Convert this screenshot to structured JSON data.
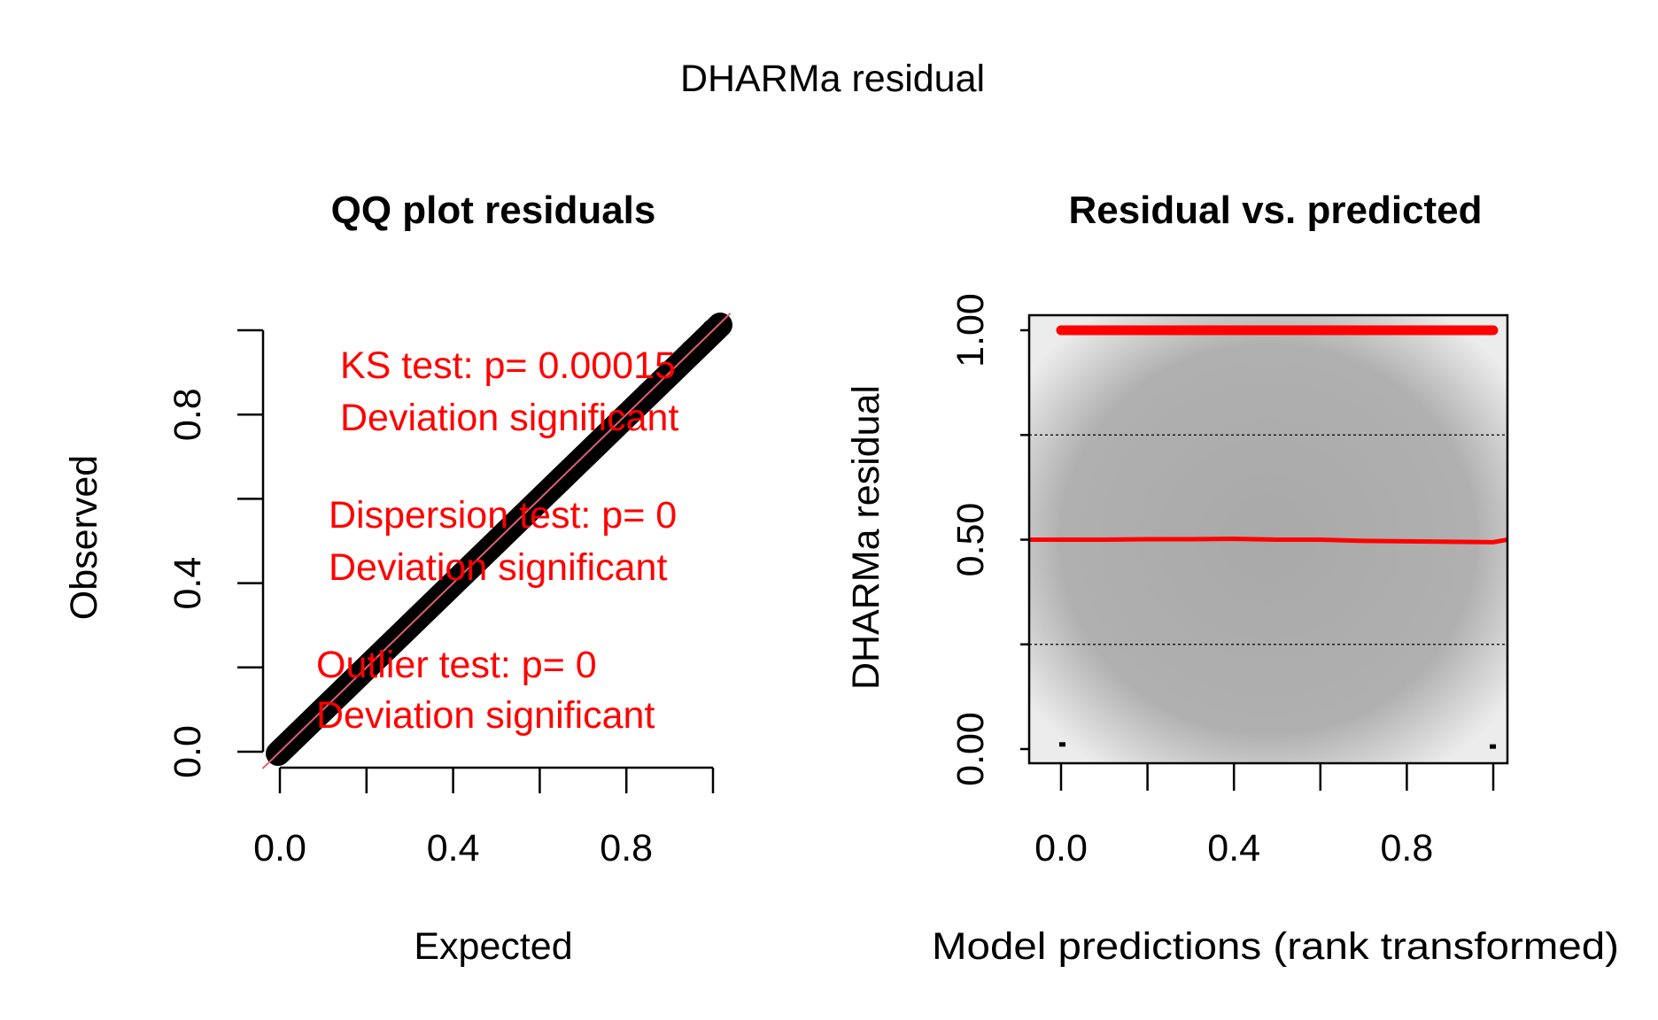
{
  "figure": {
    "title": "DHARMa residual"
  },
  "chart_data": [
    {
      "type": "scatter",
      "title": "QQ plot residuals",
      "xlabel": "Expected",
      "ylabel": "Observed",
      "xlim": [
        0,
        1
      ],
      "ylim": [
        0,
        1
      ],
      "xticks": [
        "0.0",
        "0.4",
        "0.8"
      ],
      "yticks": [
        "0.0",
        "0.4",
        "0.8"
      ],
      "x_tick_values": [
        0,
        0.2,
        0.4,
        0.6,
        0.8,
        1.0
      ],
      "y_tick_values": [
        0,
        0.2,
        0.4,
        0.6,
        0.8,
        1.0
      ],
      "series": [
        {
          "kind": "points",
          "color": "#000000",
          "x": [
            0.0,
            0.05,
            0.1,
            0.15,
            0.2,
            0.25,
            0.3,
            0.35,
            0.4,
            0.45,
            0.5,
            0.55,
            0.6,
            0.65,
            0.7,
            0.75,
            0.8,
            0.85,
            0.9,
            0.95,
            1.0
          ],
          "y": [
            0.0,
            0.05,
            0.1,
            0.15,
            0.2,
            0.25,
            0.3,
            0.35,
            0.4,
            0.45,
            0.5,
            0.55,
            0.6,
            0.65,
            0.7,
            0.75,
            0.8,
            0.85,
            0.9,
            0.95,
            1.0
          ]
        },
        {
          "kind": "reference-line",
          "color": "#e06070",
          "x": [
            -0.04,
            1.04
          ],
          "y": [
            -0.04,
            1.04
          ]
        }
      ],
      "annotations": [
        {
          "line1": "KS test: p= 0.00015",
          "line2": "Deviation  significant"
        },
        {
          "line1": "Dispersion test: p= 0",
          "line2": "Deviation  significant"
        },
        {
          "line1": "Outlier test: p= 0",
          "line2": "Deviation  significant"
        }
      ]
    },
    {
      "type": "scatter",
      "title": "Residual vs. predicted",
      "xlabel": "Model predictions (rank transformed)",
      "ylabel": "DHARMa residual",
      "xlim": [
        0,
        1
      ],
      "ylim": [
        0,
        1
      ],
      "xticks": [
        "0.0",
        "0.4",
        "0.8"
      ],
      "yticks": [
        "0.00",
        "0.50",
        "1.00"
      ],
      "x_tick_values": [
        0,
        0.2,
        0.4,
        0.6,
        0.8,
        1.0
      ],
      "y_tick_values": [
        0,
        0.25,
        0.5,
        0.75,
        1.0
      ],
      "grid_reference_lines": [
        0.25,
        0.75
      ],
      "series": [
        {
          "kind": "residuals-at-one",
          "color": "#ff0000",
          "x": [
            0.0,
            1.0
          ],
          "y": [
            1.0,
            1.0
          ]
        },
        {
          "kind": "median-quantile-line",
          "color": "#ff0000",
          "x": [
            0.0,
            0.1,
            0.2,
            0.3,
            0.4,
            0.5,
            0.6,
            0.7,
            0.8,
            0.9,
            1.0
          ],
          "y": [
            0.5,
            0.5,
            0.501,
            0.501,
            0.502,
            0.5,
            0.5,
            0.497,
            0.496,
            0.495,
            0.494
          ]
        },
        {
          "kind": "points",
          "color": "#000000",
          "x": [
            0.002,
            0.998
          ],
          "y": [
            0.01,
            0.005
          ]
        }
      ]
    }
  ]
}
